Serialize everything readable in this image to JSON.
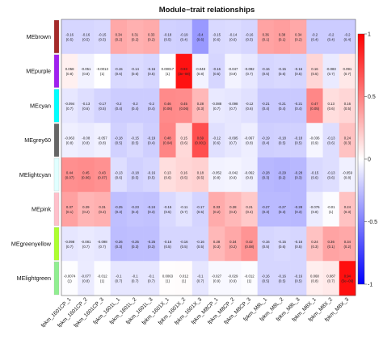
{
  "chart_data": {
    "type": "heatmap",
    "title": "Module−trait relationships",
    "rows": [
      "MEbrown",
      "MEpurple",
      "MEcyan",
      "MEgrey60",
      "MElightcyan",
      "MEpink",
      "MEgreenyellow",
      "MElightgreen"
    ],
    "row_colors": [
      "#a52a2a",
      "#a020f0",
      "#00ffff",
      "#666666",
      "#e0ffff",
      "#ffc0cb",
      "#adff2f",
      "#90ee90"
    ],
    "columns": [
      "fpkm_1601CP_1",
      "fpkm_1601CP_2",
      "fpkm_1601CP_3",
      "fpkm_1601L_1",
      "fpkm_1601L_2",
      "fpkm_1601L_3",
      "fpkm_1601X_1",
      "fpkm_1601X_2",
      "fpkm_1601X_3",
      "fpkm_M8CP_1",
      "fpkm_M8CP_2",
      "fpkm_M8CP_3",
      "fpkm_M8L_1",
      "fpkm_M8L_2",
      "fpkm_M8L_3",
      "fpkm_M8X_1",
      "fpkm_M8X_2",
      "fpkm_M8X_3"
    ],
    "correlations": [
      [
        "-0.16",
        "-0.16",
        "-0.15",
        "0.34",
        "0.31",
        "0.33",
        "-0.18",
        "-0.19",
        "-0.4",
        "-0.15",
        "-0.14",
        "-0.16",
        "0.36",
        "0.38",
        "0.34",
        "-0.2",
        "-0.2",
        "-0.2"
      ],
      [
        "0.058",
        "-0.051",
        "-0.0013",
        "-0.15",
        "-0.14",
        "-0.16",
        "0.00017",
        "0.93",
        "-0.048",
        "-0.16",
        "-0.047",
        "-0.092",
        "-0.16",
        "-0.15",
        "-0.16",
        "0.16",
        "-0.083",
        "0.091"
      ],
      [
        "-0.094",
        "-0.13",
        "-0.17",
        "-0.2",
        "-0.2",
        "-0.2",
        "0.46",
        "0.45",
        "0.28",
        "-0.088",
        "-0.098",
        "-0.12",
        "-0.21",
        "-0.21",
        "-0.21",
        "0.47",
        "0.13",
        "0.16"
      ],
      [
        "-0.063",
        "-0.08",
        "-0.057",
        "-0.18",
        "-0.15",
        "-0.19",
        "0.48",
        "0.15",
        "0.69",
        "-0.12",
        "-0.095",
        "-0.067",
        "-0.19",
        "-0.18",
        "-0.18",
        "-0.036",
        "-0.13",
        "0.24"
      ],
      [
        "0.44",
        "0.45",
        "0.43",
        "-0.13",
        "-0.18",
        "-0.16",
        "0.13",
        "0.16",
        "0.18",
        "-0.052",
        "-0.042",
        "-0.062",
        "-0.28",
        "-0.29",
        "-0.28",
        "-0.15",
        "-0.13",
        "-0.059"
      ],
      [
        "0.37",
        "0.29",
        "0.31",
        "-0.25",
        "-0.23",
        "-0.24",
        "-0.15",
        "-0.11",
        "-0.17",
        "0.33",
        "0.28",
        "0.21",
        "-0.27",
        "-0.27",
        "-0.28",
        "-0.076",
        "-0.01",
        "0.24"
      ],
      [
        "-0.098",
        "-0.081",
        "-0.098",
        "-0.26",
        "-0.25",
        "-0.25",
        "-0.16",
        "-0.16",
        "-0.16",
        "0.28",
        "0.34",
        "0.42",
        "-0.16",
        "-0.15",
        "-0.16",
        "0.24",
        "0.36",
        "0.34"
      ],
      [
        "-0.0074",
        "-0.077",
        "-0.012",
        "-0.1",
        "-0.1",
        "-0.1",
        "0.0063",
        "0.012",
        "-0.1",
        "-0.027",
        "-0.029",
        "-0.012",
        "-0.16",
        "-0.16",
        "-0.16",
        "0.068",
        "0.087",
        "0.94"
      ]
    ],
    "pvalues": [
      [
        "(0.5)",
        "(0.5)",
        "(0.5)",
        "(0.2)",
        "(0.2)",
        "(0.2)",
        "(0.5)",
        "(0.4)",
        "(0.6)",
        "(0.6)",
        "(0.6)",
        "(0.5)",
        "(0.1)",
        "(0.1)",
        "(0.2)",
        "(0.4)",
        "(0.4)",
        "(0.4)"
      ],
      [
        "(0.8)",
        "(0.8)",
        "(1)",
        "(0.6)",
        "(0.6)",
        "(0.5)",
        "(1)",
        "(3e−08)",
        "(0.8)",
        "(0.5)",
        "(0.9)",
        "(0.7)",
        "(0.5)",
        "(0.6)",
        "(0.5)",
        "(0.5)",
        "(0.7)",
        "(0.7)"
      ],
      [
        "(0.7)",
        "(0.6)",
        "(0.5)",
        "(0.4)",
        "(0.4)",
        "(0.4)",
        "(0.06)",
        "(0.06)",
        "(0.3)",
        "(0.7)",
        "(0.7)",
        "(0.6)",
        "(0.4)",
        "(0.4)",
        "(0.4)",
        "(0.05)",
        "(0.6)",
        "(0.5)"
      ],
      [
        "(0.8)",
        "(0.8)",
        "(0.8)",
        "(0.5)",
        "(0.5)",
        "(0.4)",
        "(0.04)",
        "(0.6)",
        "(0.001)",
        "(0.6)",
        "(0.7)",
        "(0.8)",
        "(0.4)",
        "(0.5)",
        "(0.5)",
        "(0.9)",
        "(0.6)",
        "(0.3)"
      ],
      [
        "(0.07)",
        "(0.06)",
        "(0.07)",
        "(0.6)",
        "(0.5)",
        "(0.5)",
        "(0.6)",
        "(0.5)",
        "(0.5)",
        "(0.8)",
        "(0.9)",
        "(0.8)",
        "(0.3)",
        "(0.2)",
        "(0.3)",
        "(0.6)",
        "(0.6)",
        "(0.8)"
      ],
      [
        "(0.1)",
        "(0.2)",
        "(0.2)",
        "(0.3)",
        "(0.4)",
        "(0.3)",
        "(0.5)",
        "(0.7)",
        "(0.5)",
        "(0.2)",
        "(0.3)",
        "(0.4)",
        "(0.3)",
        "(0.3)",
        "(0.3)",
        "(0.8)",
        "(1)",
        "(0.3)"
      ],
      [
        "(0.7)",
        "(0.7)",
        "(0.7)",
        "(0.3)",
        "(0.3)",
        "(0.3)",
        "(0.5)",
        "(0.5)",
        "(0.5)",
        "(0.3)",
        "(0.2)",
        "(0.08)",
        "(0.5)",
        "(0.6)",
        "(0.5)",
        "(0.3)",
        "(0.1)",
        "(0.2)"
      ],
      [
        "(1)",
        "(0.8)",
        "(1)",
        "(0.7)",
        "(0.7)",
        "(0.7)",
        "(1)",
        "(1)",
        "(0.7)",
        "(0.9)",
        "(0.9)",
        "(1)",
        "(0.5)",
        "(0.5)",
        "(0.5)",
        "(0.8)",
        "(0.7)",
        "(5e−09)"
      ]
    ],
    "colorbar": {
      "min": -1,
      "max": 1,
      "ticks": [
        "-1",
        "-0.5",
        "0",
        "0.5",
        "1"
      ],
      "low_color": "#0000ff",
      "mid_color": "#ffffff",
      "high_color": "#ff0000"
    }
  }
}
